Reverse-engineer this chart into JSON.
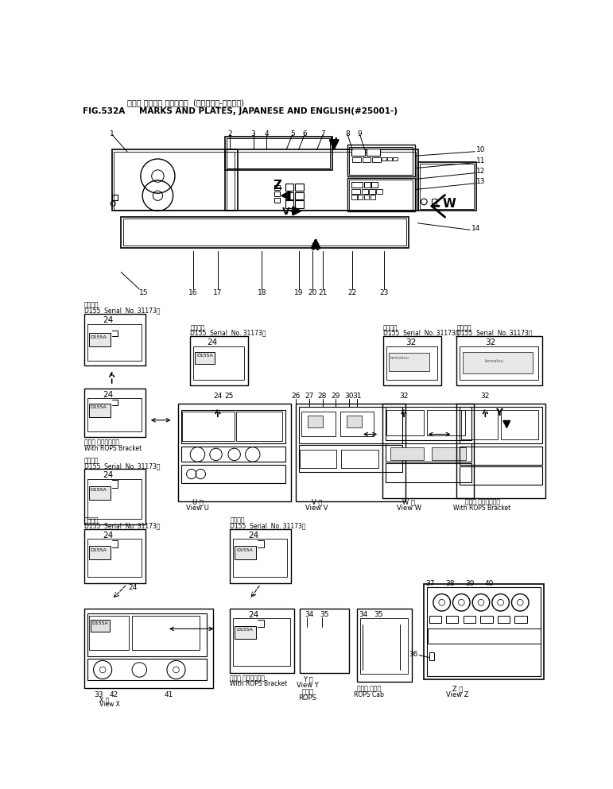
{
  "bg_color": "#ffffff",
  "line_color": "#000000",
  "fig_width": 7.71,
  "fig_height": 9.93,
  "dpi": 100,
  "title_jp": "マーク オヨビ゛ ブ゛レート  (ニホンコ゛-エイコ゛)",
  "title_fig": "FIG.532A",
  "title_en": "MARKS AND PLATES, JAPANESE AND ENGLISH(#25001-)"
}
